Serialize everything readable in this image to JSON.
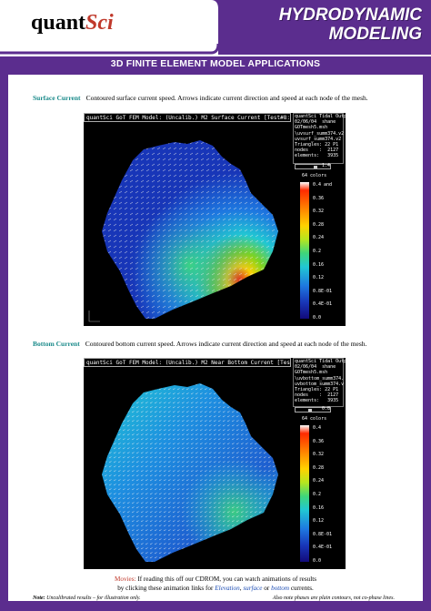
{
  "header": {
    "logo_prefix": "quant",
    "logo_suffix": "Sci",
    "title_line1": "HYDRODYNAMIC",
    "title_line2": "MODELING"
  },
  "section_title": "3D FINITE ELEMENT MODEL APPLICATIONS",
  "surface": {
    "label": "Surface Current",
    "caption": "Contoured surface current speed. Arrows indicate current direction and speed at each node of the mesh.",
    "window_title": "quantSci GoT FEM Model: (Uncalib.) M2 Surface Current [Test#8: BT/Wa",
    "info": [
      "quantSci Tidal Output",
      "02/06/04  shane",
      "GOTmesh5.msh",
      "\\uvsurf_summ374.v2",
      "uvsurf_summ374.v2",
      "Triangles: 22 P1",
      "nodes    :  2127",
      "elements:   3935"
    ],
    "slider_value": "1.4",
    "colors_label": "64 colors",
    "ticks": [
      "0.4 and",
      "0.36",
      "0.32",
      "0.28",
      "0.24",
      "0.2",
      "0.16",
      "0.12",
      "0.8E-01",
      "0.4E-01",
      "0.0"
    ]
  },
  "bottom": {
    "label": "Bottom Current",
    "caption": "Contoured bottom current speed. Arrows indicate current direction and speed at each node of the mesh.",
    "window_title": "quantSci GoT FEM Model: (Uncalib.) M2 Near Bottom Current [Test#8: B",
    "info": [
      "quantSci Tidal Output",
      "02/06/04  shane",
      "GOTmesh5.msh",
      "\\uvbottom_summ374.",
      "uvbottom_summ374.v",
      "Triangles: 22 P1",
      "nodes    :  2127",
      "elements:   3935"
    ],
    "slider_value": "0.8",
    "colors_label": "64 colors",
    "ticks": [
      "0.4",
      "0.36",
      "0.32",
      "0.28",
      "0.24",
      "0.2",
      "0.16",
      "0.12",
      "0.8E-01",
      "0.4E-01",
      "0.0"
    ]
  },
  "movies": {
    "label": "Movies:",
    "text1": " If reading this off our CDROM, you can watch animations of results",
    "text2_a": "by clicking these animation links for ",
    "link_elevation": "Elevation",
    "sep1": ", ",
    "link_surface": "surface",
    "sep2": " or ",
    "link_bottom": "bottom",
    "text2_b": " currents."
  },
  "notes": {
    "left_bold": "Note:",
    "left_text": " Uncalibrated results – for illustration only.",
    "right_text": "Also note phases are plain contours, not  co-phase lines."
  },
  "colors": {
    "brand_purple": "#5b2d8e",
    "label_teal": "#1a8a8a",
    "movies_red": "#c0392b",
    "link_blue": "#1f4fb5"
  }
}
